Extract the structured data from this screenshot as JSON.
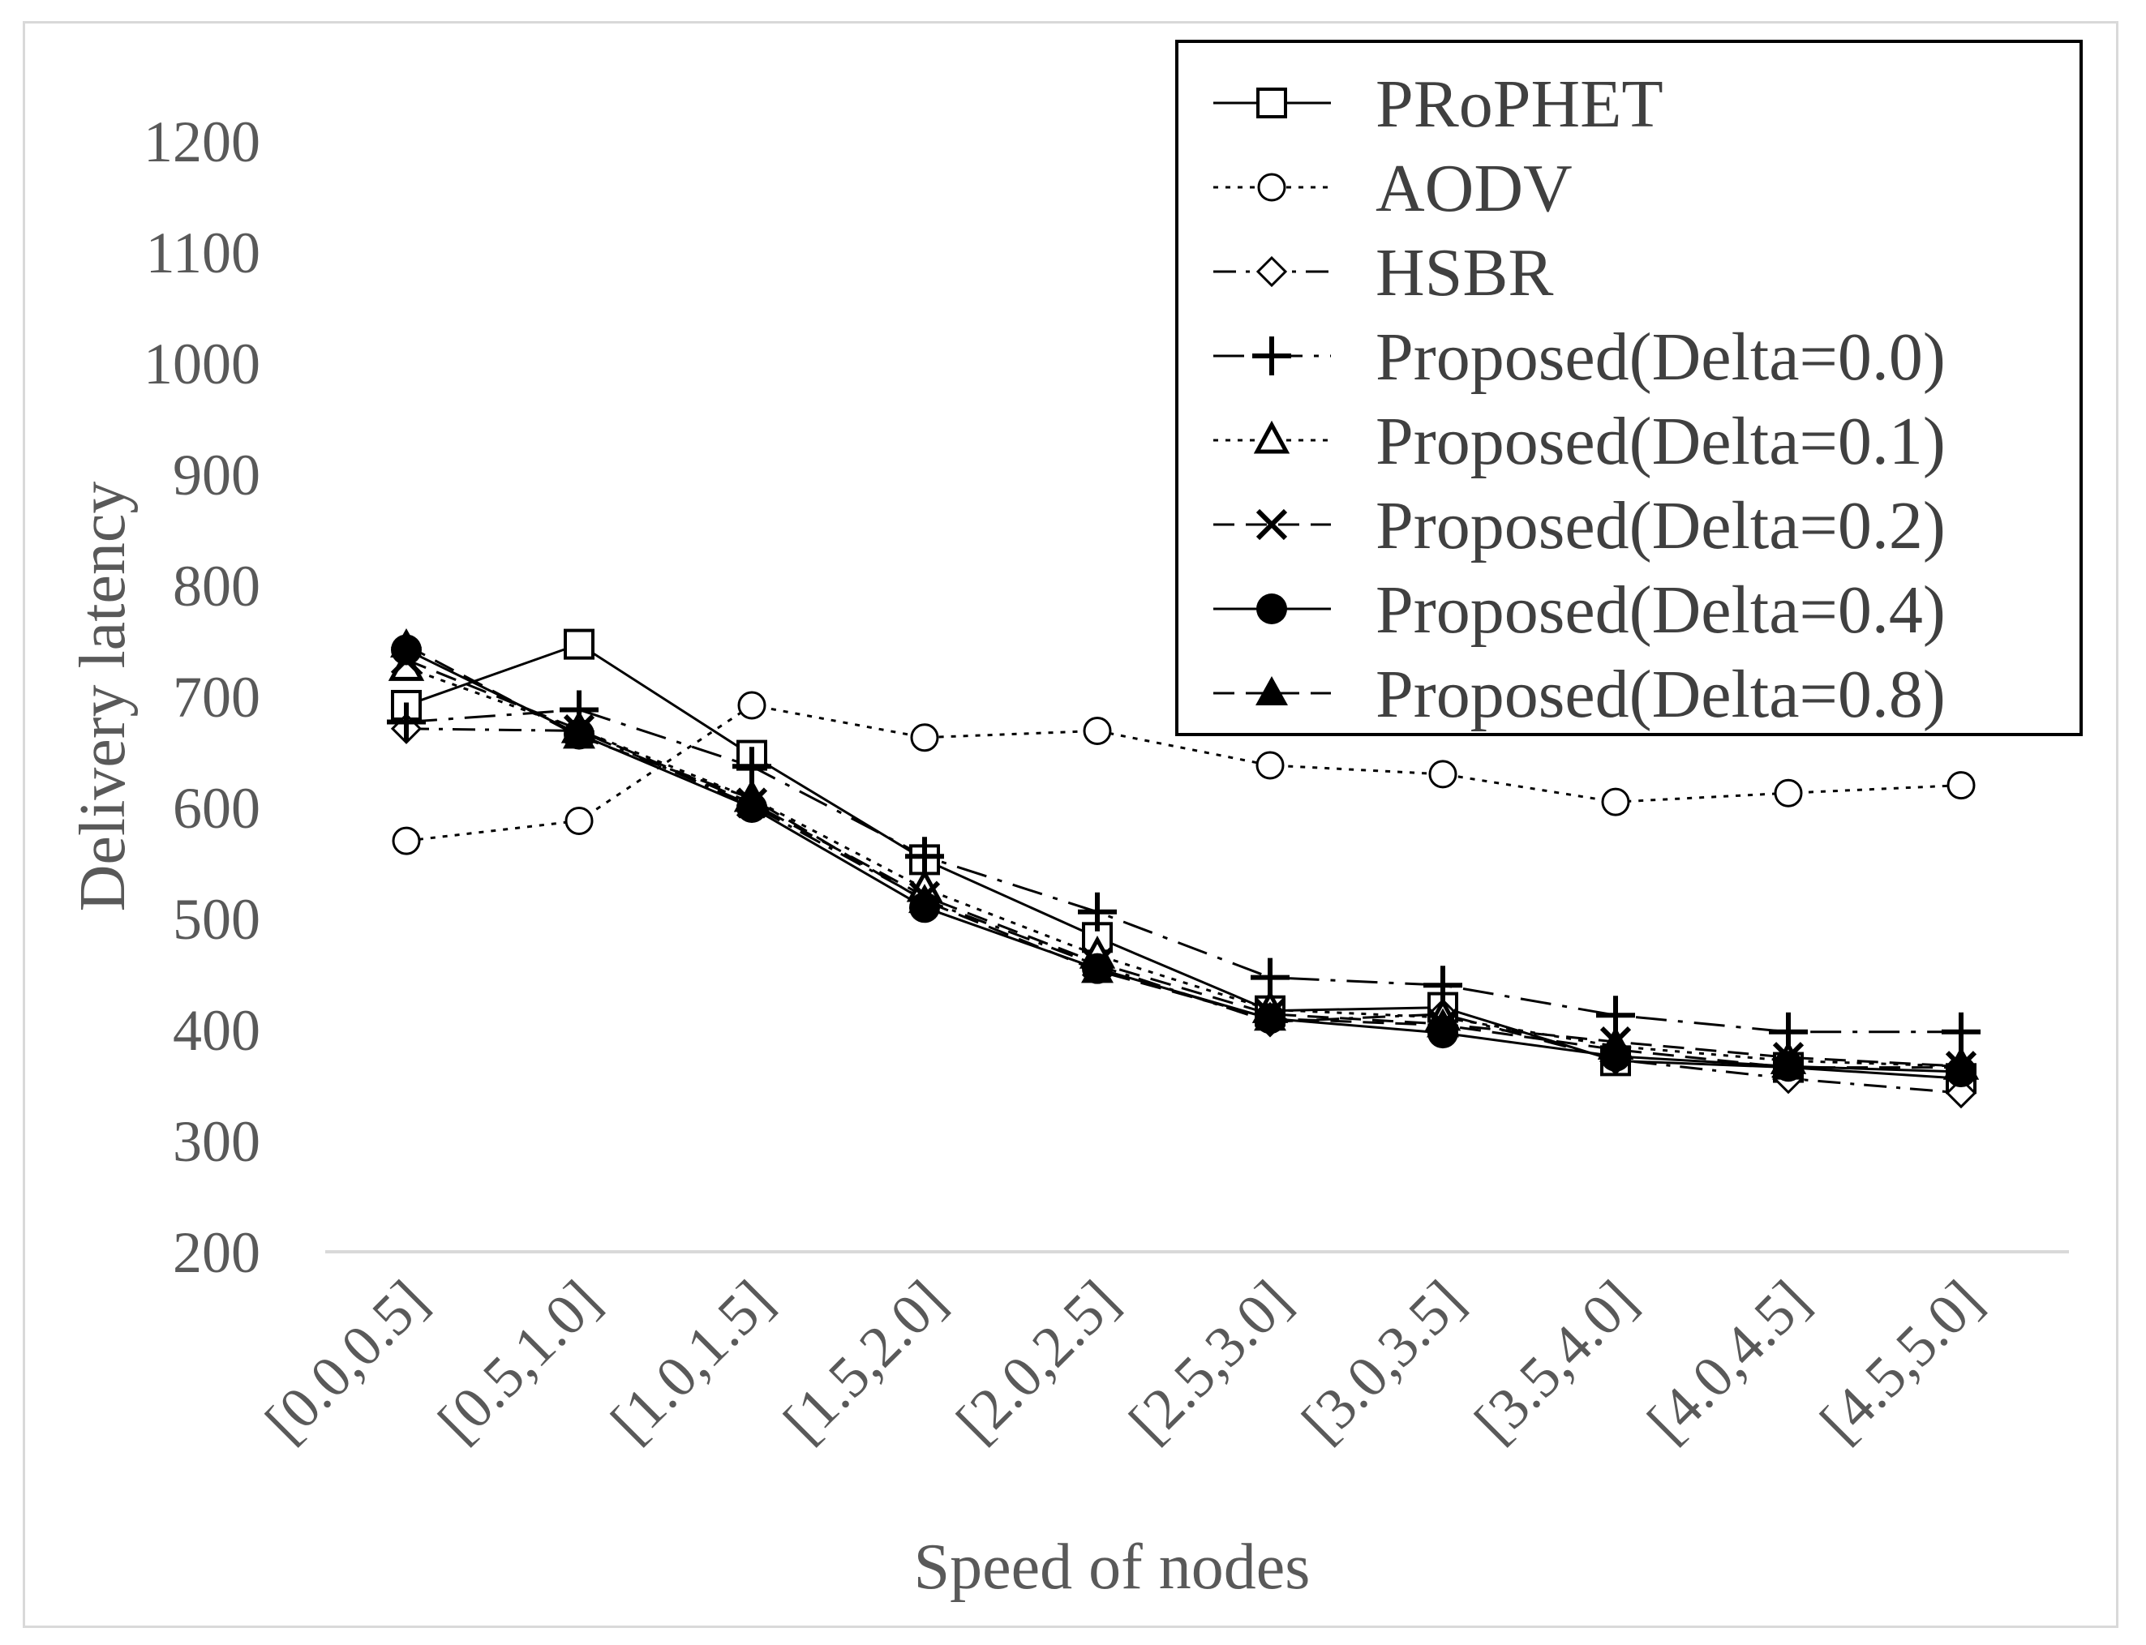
{
  "chart_data": {
    "type": "line",
    "title": "",
    "xlabel": "Speed of nodes",
    "ylabel": "Delivery latency",
    "ylim": [
      200,
      1200
    ],
    "yticks": [
      200,
      300,
      400,
      500,
      600,
      700,
      800,
      900,
      1000,
      1100,
      1200
    ],
    "categories": [
      "[0.0,0.5]",
      "[0.5,1.0]",
      "[1.0,1.5]",
      "[1.5,2.0]",
      "[2.0,2.5]",
      "[2.5,3.0]",
      "[3.0,3.5]",
      "[3.5,4.0]",
      "[4.0,4.5]",
      "[4.5,5.0]"
    ],
    "legend_position": "top-right",
    "grid": false,
    "series": [
      {
        "name": "PRoPHET",
        "marker": "square-open",
        "dash": "solid",
        "values": [
          692,
          747,
          647,
          553,
          483,
          417,
          420,
          372,
          366,
          356
        ]
      },
      {
        "name": "AODV",
        "marker": "circle-open",
        "dash": "dotted",
        "values": [
          570,
          588,
          692,
          663,
          669,
          638,
          630,
          605,
          613,
          620
        ]
      },
      {
        "name": "HSBR",
        "marker": "diamond-open",
        "dash": "dashdot",
        "values": [
          671,
          669,
          602,
          517,
          458,
          407,
          414,
          373,
          356,
          343
        ]
      },
      {
        "name": "Proposed(Delta=0.0)",
        "marker": "plus",
        "dash": "dashdotlong",
        "values": [
          677,
          688,
          637,
          556,
          506,
          447,
          440,
          413,
          398,
          398
        ]
      },
      {
        "name": "Proposed(Delta=0.1)",
        "marker": "triangle-open",
        "dash": "dotted",
        "values": [
          726,
          670,
          608,
          527,
          467,
          418,
          411,
          385,
          372,
          367
        ]
      },
      {
        "name": "Proposed(Delta=0.2)",
        "marker": "x",
        "dash": "dashed",
        "values": [
          733,
          670,
          604,
          520,
          460,
          414,
          405,
          389,
          375,
          367
        ]
      },
      {
        "name": "Proposed(Delta=0.4)",
        "marker": "circle-filled",
        "dash": "solid",
        "values": [
          742,
          666,
          600,
          510,
          455,
          410,
          397,
          376,
          367,
          362
        ]
      },
      {
        "name": "Proposed(Delta=0.8)",
        "marker": "triangle-filled",
        "dash": "dashed",
        "values": [
          746,
          664,
          608,
          516,
          453,
          410,
          404,
          382,
          366,
          366
        ]
      }
    ]
  }
}
